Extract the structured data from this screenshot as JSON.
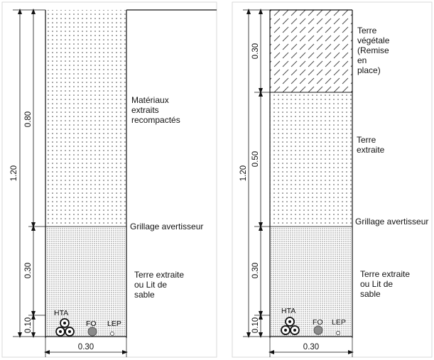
{
  "left_section": {
    "total_depth": "1.20",
    "width": "0.30",
    "layers": [
      {
        "depth": "0.80",
        "label_lines": [
          "Matériaux",
          "extraits",
          "recompactés"
        ]
      },
      {
        "depth": "0.30",
        "label_lines": [
          "Terre extraite",
          "ou Lit de",
          "sable"
        ]
      },
      {
        "depth": "0.10"
      }
    ],
    "warning_mesh": "Grillage avertisseur",
    "cables": {
      "hta": "HTA",
      "fo": "FO",
      "lep": "LEP"
    }
  },
  "right_section": {
    "total_depth": "1.20",
    "width": "0.30",
    "layers": [
      {
        "depth": "0.30",
        "label_lines": [
          "Terre",
          "végétale",
          "(Remise",
          "en",
          "place)"
        ]
      },
      {
        "depth": "0.50",
        "label_lines": [
          "Terre",
          "extraite"
        ]
      },
      {
        "depth": "0.30",
        "label_lines": [
          "Terre extraite",
          "ou Lit de",
          "sable"
        ]
      },
      {
        "depth": "0.10"
      }
    ],
    "warning_mesh": "Grillage avertisseur",
    "cables": {
      "hta": "HTA",
      "fo": "FO",
      "lep": "LEP"
    }
  },
  "colors": {
    "line": "#111111",
    "fill_dots": "#333333",
    "fill_dense": "#555555",
    "fo_cable": "#8a8a8a"
  }
}
